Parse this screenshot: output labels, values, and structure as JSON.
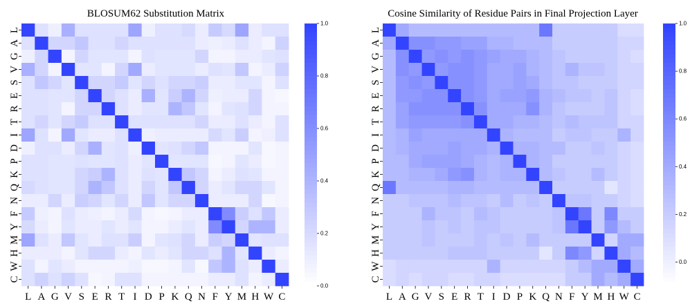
{
  "chart_data": [
    {
      "type": "heatmap",
      "title": "BLOSUM62 Substitution Matrix",
      "labels": [
        "L",
        "A",
        "G",
        "V",
        "S",
        "E",
        "R",
        "T",
        "I",
        "D",
        "P",
        "K",
        "Q",
        "N",
        "F",
        "Y",
        "M",
        "H",
        "W",
        "C"
      ],
      "colorbar": {
        "min": 0.0,
        "max": 1.0,
        "ticks": [
          "0.0",
          "0.2",
          "0.4",
          "0.6",
          "0.8",
          "1.0"
        ]
      },
      "colors": {
        "low": "#ffffff",
        "high": "#3344ff"
      },
      "values": [
        [
          1.0,
          0.16,
          0.08,
          0.42,
          0.16,
          0.16,
          0.16,
          0.16,
          0.48,
          0.08,
          0.16,
          0.16,
          0.2,
          0.1,
          0.28,
          0.2,
          0.48,
          0.1,
          0.16,
          0.16
        ],
        [
          0.16,
          1.0,
          0.22,
          0.22,
          0.3,
          0.16,
          0.16,
          0.22,
          0.16,
          0.16,
          0.16,
          0.16,
          0.16,
          0.1,
          0.08,
          0.1,
          0.16,
          0.1,
          0.06,
          0.24
        ],
        [
          0.08,
          0.22,
          1.0,
          0.06,
          0.22,
          0.14,
          0.14,
          0.14,
          0.06,
          0.16,
          0.14,
          0.14,
          0.14,
          0.22,
          0.06,
          0.06,
          0.1,
          0.1,
          0.14,
          0.16
        ],
        [
          0.42,
          0.22,
          0.06,
          1.0,
          0.14,
          0.14,
          0.06,
          0.22,
          0.46,
          0.1,
          0.14,
          0.14,
          0.14,
          0.1,
          0.16,
          0.14,
          0.3,
          0.06,
          0.1,
          0.24
        ],
        [
          0.16,
          0.3,
          0.22,
          0.14,
          1.0,
          0.22,
          0.22,
          0.28,
          0.14,
          0.22,
          0.16,
          0.22,
          0.22,
          0.26,
          0.1,
          0.1,
          0.14,
          0.14,
          0.06,
          0.16
        ],
        [
          0.16,
          0.16,
          0.14,
          0.14,
          0.22,
          1.0,
          0.22,
          0.16,
          0.1,
          0.42,
          0.14,
          0.26,
          0.4,
          0.22,
          0.08,
          0.1,
          0.1,
          0.22,
          0.06,
          0.04
        ],
        [
          0.16,
          0.16,
          0.14,
          0.06,
          0.22,
          0.22,
          1.0,
          0.16,
          0.1,
          0.14,
          0.14,
          0.4,
          0.3,
          0.14,
          0.06,
          0.14,
          0.16,
          0.22,
          0.06,
          0.06
        ],
        [
          0.16,
          0.22,
          0.14,
          0.22,
          0.28,
          0.16,
          0.16,
          1.0,
          0.16,
          0.16,
          0.16,
          0.16,
          0.16,
          0.22,
          0.1,
          0.1,
          0.16,
          0.1,
          0.06,
          0.16
        ],
        [
          0.48,
          0.16,
          0.06,
          0.46,
          0.14,
          0.1,
          0.1,
          0.16,
          1.0,
          0.08,
          0.1,
          0.1,
          0.1,
          0.1,
          0.2,
          0.14,
          0.26,
          0.06,
          0.08,
          0.16
        ],
        [
          0.08,
          0.16,
          0.16,
          0.1,
          0.22,
          0.42,
          0.14,
          0.16,
          0.08,
          1.0,
          0.14,
          0.16,
          0.22,
          0.3,
          0.06,
          0.06,
          0.06,
          0.14,
          0.04,
          0.06
        ],
        [
          0.16,
          0.16,
          0.14,
          0.14,
          0.16,
          0.14,
          0.14,
          0.16,
          0.1,
          0.14,
          1.0,
          0.14,
          0.14,
          0.14,
          0.04,
          0.06,
          0.14,
          0.1,
          0.04,
          0.06
        ],
        [
          0.16,
          0.16,
          0.14,
          0.14,
          0.22,
          0.26,
          0.4,
          0.16,
          0.1,
          0.16,
          0.14,
          1.0,
          0.3,
          0.22,
          0.06,
          0.1,
          0.16,
          0.14,
          0.06,
          0.06
        ],
        [
          0.2,
          0.16,
          0.14,
          0.14,
          0.22,
          0.4,
          0.3,
          0.16,
          0.1,
          0.22,
          0.14,
          0.3,
          1.0,
          0.22,
          0.1,
          0.14,
          0.22,
          0.22,
          0.14,
          0.06
        ],
        [
          0.1,
          0.1,
          0.22,
          0.1,
          0.26,
          0.22,
          0.14,
          0.22,
          0.1,
          0.3,
          0.14,
          0.22,
          0.22,
          1.0,
          0.1,
          0.1,
          0.1,
          0.22,
          0.04,
          0.06
        ],
        [
          0.28,
          0.08,
          0.06,
          0.16,
          0.1,
          0.08,
          0.06,
          0.1,
          0.2,
          0.06,
          0.04,
          0.06,
          0.1,
          0.1,
          1.0,
          0.62,
          0.26,
          0.16,
          0.3,
          0.1
        ],
        [
          0.2,
          0.1,
          0.06,
          0.14,
          0.1,
          0.1,
          0.14,
          0.1,
          0.14,
          0.06,
          0.06,
          0.1,
          0.14,
          0.1,
          0.62,
          1.0,
          0.22,
          0.4,
          0.4,
          0.1
        ],
        [
          0.48,
          0.16,
          0.1,
          0.3,
          0.14,
          0.1,
          0.16,
          0.16,
          0.26,
          0.06,
          0.14,
          0.16,
          0.22,
          0.1,
          0.26,
          0.22,
          1.0,
          0.14,
          0.16,
          0.16
        ],
        [
          0.1,
          0.1,
          0.1,
          0.06,
          0.14,
          0.22,
          0.22,
          0.1,
          0.06,
          0.14,
          0.1,
          0.14,
          0.22,
          0.22,
          0.16,
          0.4,
          0.14,
          1.0,
          0.1,
          0.06
        ],
        [
          0.16,
          0.06,
          0.14,
          0.1,
          0.06,
          0.06,
          0.06,
          0.06,
          0.08,
          0.04,
          0.04,
          0.06,
          0.14,
          0.04,
          0.3,
          0.4,
          0.16,
          0.1,
          1.0,
          0.1
        ],
        [
          0.16,
          0.24,
          0.16,
          0.24,
          0.16,
          0.04,
          0.06,
          0.16,
          0.16,
          0.06,
          0.06,
          0.06,
          0.06,
          0.06,
          0.1,
          0.1,
          0.16,
          0.06,
          0.1,
          1.0
        ]
      ]
    },
    {
      "type": "heatmap",
      "title": "Cosine Similarity of Residue Pairs in Final Projection Layer",
      "labels": [
        "L",
        "A",
        "G",
        "V",
        "S",
        "E",
        "R",
        "T",
        "I",
        "D",
        "P",
        "K",
        "Q",
        "N",
        "F",
        "Y",
        "M",
        "H",
        "W",
        "C"
      ],
      "colorbar": {
        "min": -0.1,
        "max": 1.0,
        "ticks": [
          "0.0",
          "0.2",
          "0.4",
          "0.6",
          "0.8",
          "1.0"
        ]
      },
      "colors": {
        "low": "#ffffff",
        "high": "#3344ff"
      },
      "values": [
        [
          1.0,
          0.4,
          0.3,
          0.3,
          0.3,
          0.3,
          0.3,
          0.3,
          0.3,
          0.3,
          0.3,
          0.3,
          0.7,
          0.2,
          0.2,
          0.2,
          0.2,
          0.2,
          0.1,
          0.1
        ],
        [
          0.4,
          1.0,
          0.55,
          0.55,
          0.5,
          0.5,
          0.45,
          0.45,
          0.35,
          0.35,
          0.3,
          0.3,
          0.3,
          0.2,
          0.2,
          0.2,
          0.2,
          0.2,
          0.15,
          0.15
        ],
        [
          0.3,
          0.55,
          1.0,
          0.5,
          0.55,
          0.5,
          0.55,
          0.5,
          0.45,
          0.4,
          0.4,
          0.35,
          0.3,
          0.25,
          0.2,
          0.2,
          0.2,
          0.2,
          0.15,
          0.1
        ],
        [
          0.3,
          0.55,
          0.5,
          1.0,
          0.5,
          0.55,
          0.55,
          0.5,
          0.4,
          0.4,
          0.45,
          0.35,
          0.3,
          0.25,
          0.35,
          0.25,
          0.25,
          0.2,
          0.15,
          0.15
        ],
        [
          0.3,
          0.5,
          0.55,
          0.5,
          1.0,
          0.55,
          0.55,
          0.5,
          0.4,
          0.4,
          0.45,
          0.4,
          0.3,
          0.25,
          0.25,
          0.2,
          0.2,
          0.2,
          0.15,
          0.15
        ],
        [
          0.3,
          0.5,
          0.5,
          0.55,
          0.55,
          1.0,
          0.55,
          0.5,
          0.4,
          0.45,
          0.45,
          0.5,
          0.35,
          0.3,
          0.25,
          0.25,
          0.2,
          0.25,
          0.15,
          0.1
        ],
        [
          0.3,
          0.45,
          0.55,
          0.55,
          0.55,
          0.55,
          1.0,
          0.55,
          0.4,
          0.4,
          0.4,
          0.55,
          0.35,
          0.25,
          0.2,
          0.2,
          0.2,
          0.25,
          0.15,
          0.1
        ],
        [
          0.3,
          0.45,
          0.5,
          0.5,
          0.5,
          0.5,
          0.55,
          1.0,
          0.4,
          0.4,
          0.35,
          0.35,
          0.3,
          0.25,
          0.3,
          0.25,
          0.25,
          0.25,
          0.15,
          0.15
        ],
        [
          0.3,
          0.35,
          0.45,
          0.4,
          0.4,
          0.4,
          0.4,
          0.4,
          1.0,
          0.35,
          0.3,
          0.3,
          0.3,
          0.2,
          0.25,
          0.25,
          0.2,
          0.2,
          0.35,
          0.15
        ],
        [
          0.3,
          0.35,
          0.4,
          0.4,
          0.4,
          0.45,
          0.4,
          0.4,
          0.35,
          1.0,
          0.35,
          0.35,
          0.3,
          0.3,
          0.2,
          0.2,
          0.25,
          0.2,
          0.15,
          0.1
        ],
        [
          0.3,
          0.3,
          0.4,
          0.45,
          0.45,
          0.45,
          0.4,
          0.35,
          0.3,
          0.35,
          1.0,
          0.35,
          0.3,
          0.2,
          0.2,
          0.2,
          0.2,
          0.2,
          0.15,
          0.1
        ],
        [
          0.3,
          0.3,
          0.35,
          0.35,
          0.4,
          0.5,
          0.55,
          0.35,
          0.3,
          0.35,
          0.35,
          1.0,
          0.3,
          0.25,
          0.2,
          0.2,
          0.3,
          0.2,
          0.15,
          0.1
        ],
        [
          0.7,
          0.3,
          0.3,
          0.3,
          0.3,
          0.35,
          0.35,
          0.3,
          0.3,
          0.3,
          0.3,
          0.3,
          1.0,
          0.2,
          0.2,
          0.2,
          0.2,
          0.05,
          0.15,
          0.1
        ],
        [
          0.2,
          0.2,
          0.25,
          0.25,
          0.25,
          0.3,
          0.25,
          0.25,
          0.2,
          0.3,
          0.2,
          0.25,
          0.2,
          1.0,
          0.25,
          0.25,
          0.2,
          0.2,
          0.15,
          0.1
        ],
        [
          0.2,
          0.2,
          0.2,
          0.35,
          0.25,
          0.25,
          0.2,
          0.3,
          0.25,
          0.2,
          0.2,
          0.2,
          0.2,
          0.25,
          1.0,
          0.7,
          0.2,
          0.6,
          0.2,
          0.2
        ],
        [
          0.2,
          0.2,
          0.2,
          0.25,
          0.2,
          0.25,
          0.2,
          0.25,
          0.25,
          0.2,
          0.2,
          0.2,
          0.2,
          0.25,
          0.7,
          1.0,
          0.2,
          0.5,
          0.3,
          0.2
        ],
        [
          0.2,
          0.2,
          0.2,
          0.25,
          0.2,
          0.2,
          0.2,
          0.25,
          0.2,
          0.25,
          0.2,
          0.3,
          0.2,
          0.2,
          0.2,
          0.2,
          1.0,
          0.15,
          0.4,
          0.4
        ],
        [
          0.2,
          0.2,
          0.2,
          0.2,
          0.2,
          0.25,
          0.25,
          0.25,
          0.2,
          0.2,
          0.2,
          0.2,
          0.05,
          0.2,
          0.6,
          0.5,
          0.15,
          1.0,
          0.4,
          0.3
        ],
        [
          0.1,
          0.15,
          0.15,
          0.15,
          0.15,
          0.15,
          0.15,
          0.15,
          0.35,
          0.15,
          0.15,
          0.15,
          0.15,
          0.15,
          0.2,
          0.3,
          0.4,
          0.4,
          1.0,
          0.4
        ],
        [
          0.1,
          0.15,
          0.1,
          0.15,
          0.15,
          0.1,
          0.1,
          0.15,
          0.15,
          0.1,
          0.1,
          0.1,
          0.1,
          0.1,
          0.2,
          0.2,
          0.4,
          0.3,
          0.4,
          1.0
        ]
      ]
    }
  ]
}
